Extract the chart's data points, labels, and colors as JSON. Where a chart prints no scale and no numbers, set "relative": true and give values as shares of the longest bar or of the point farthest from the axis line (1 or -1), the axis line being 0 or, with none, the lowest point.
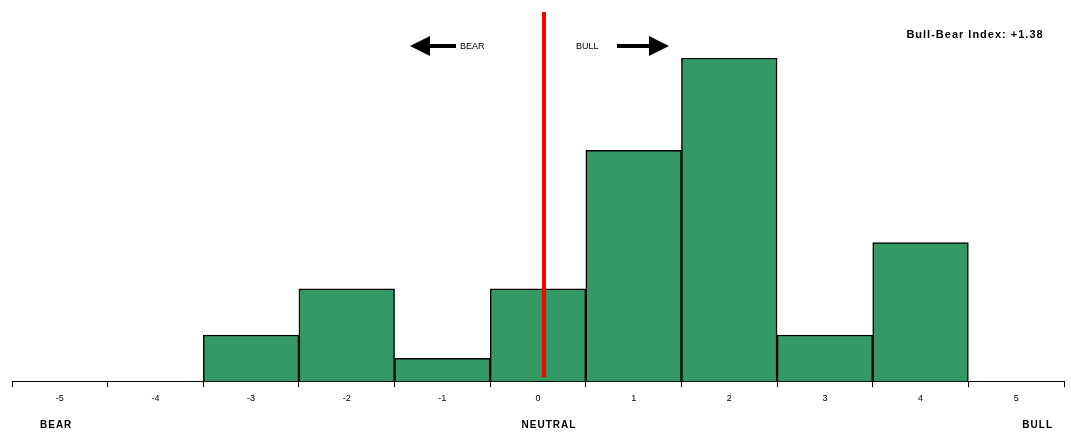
{
  "chart_data": {
    "type": "bar",
    "title": "Bull-Bear Index: +1.38",
    "categories": [
      "-5",
      "-4",
      "-3",
      "-2",
      "-1",
      "0",
      "1",
      "2",
      "3",
      "4",
      "5"
    ],
    "values": [
      0,
      0,
      0.143,
      0.286,
      0.071,
      0.286,
      0.714,
      1,
      0.143,
      0.429,
      0
    ],
    "color": "#339966",
    "relative": true,
    "grid": false,
    "legend": false,
    "ref_lines": [
      {
        "axis": "x",
        "value": "0",
        "color": "#ff0000"
      }
    ],
    "annotations": [
      "BEAR",
      "BULL",
      "BEAR",
      "NEUTRAL",
      "BULL"
    ]
  }
}
